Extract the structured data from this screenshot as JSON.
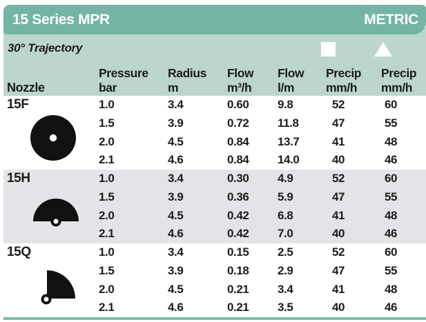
{
  "header": {
    "title": "15 Series MPR",
    "badge": "METRIC"
  },
  "subheader": {
    "trajectory": "30° Trajectory"
  },
  "legend": [
    {
      "icon": "square-icon",
      "shape": "square"
    },
    {
      "icon": "triangle-icon",
      "shape": "triangle"
    }
  ],
  "columns": [
    {
      "key": "nozzle",
      "top": "",
      "bottom": "Nozzle"
    },
    {
      "key": "pressure-bar",
      "top": "Pressure",
      "bottom": "bar"
    },
    {
      "key": "radius-m",
      "top": "Radius",
      "bottom": "m"
    },
    {
      "key": "flow-m3h",
      "top": "Flow",
      "bottom": "m³/h"
    },
    {
      "key": "flow-lm",
      "top": "Flow",
      "bottom": "l/m"
    },
    {
      "key": "precip-square",
      "top": "Precip",
      "bottom": "mm/h"
    },
    {
      "key": "precip-triangle",
      "top": "Precip",
      "bottom": "mm/h"
    }
  ],
  "sections": [
    {
      "nozzle": "15F",
      "pattern": "full-circle-icon",
      "rows": [
        [
          "1.0",
          "3.4",
          "0.60",
          "9.8",
          "52",
          "60"
        ],
        [
          "1.5",
          "3.9",
          "0.72",
          "11.8",
          "47",
          "55"
        ],
        [
          "2.0",
          "4.5",
          "0.84",
          "13.7",
          "41",
          "48"
        ],
        [
          "2.1",
          "4.6",
          "0.84",
          "14.0",
          "40",
          "46"
        ]
      ]
    },
    {
      "nozzle": "15H",
      "pattern": "half-circle-icon",
      "rows": [
        [
          "1.0",
          "3.4",
          "0.30",
          "4.9",
          "52",
          "60"
        ],
        [
          "1.5",
          "3.9",
          "0.36",
          "5.9",
          "47",
          "55"
        ],
        [
          "2.0",
          "4.5",
          "0.42",
          "6.8",
          "41",
          "48"
        ],
        [
          "2.1",
          "4.6",
          "0.42",
          "7.0",
          "40",
          "46"
        ]
      ]
    },
    {
      "nozzle": "15Q",
      "pattern": "quarter-circle-icon",
      "rows": [
        [
          "1.0",
          "3.4",
          "0.15",
          "2.5",
          "52",
          "60"
        ],
        [
          "1.5",
          "3.9",
          "0.18",
          "2.9",
          "47",
          "55"
        ],
        [
          "2.0",
          "4.5",
          "0.21",
          "3.4",
          "41",
          "48"
        ],
        [
          "2.1",
          "4.6",
          "0.21",
          "3.5",
          "40",
          "46"
        ]
      ]
    }
  ],
  "colors": {
    "header_teal": "#74b4a4",
    "band_green": "#bcd6cd",
    "row_gray": "#e4e3e7",
    "text": "#1c1c1a",
    "bottom_rule": "#7cb8a9"
  }
}
